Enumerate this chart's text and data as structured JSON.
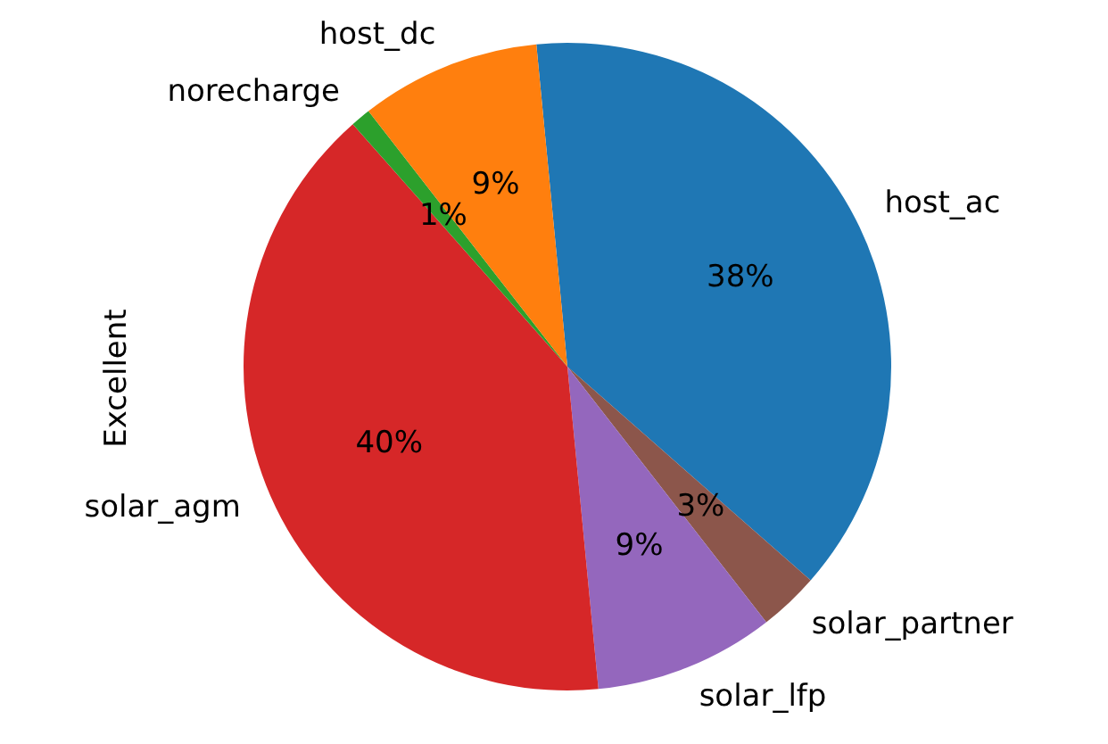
{
  "chart_data": {
    "type": "pie",
    "ylabel": "Excellent",
    "categories": [
      "host_ac",
      "solar_partner",
      "solar_lfp",
      "solar_agm",
      "norecharge",
      "host_dc"
    ],
    "values": [
      38,
      3,
      9,
      40,
      1,
      9
    ],
    "colors": [
      "#1f77b4",
      "#8c564b",
      "#9467bd",
      "#d62728",
      "#2ca02c",
      "#ff7f0e"
    ],
    "value_labels": [
      "38%",
      "3%",
      "9%",
      "40%",
      "1%",
      "9%"
    ],
    "legend": false
  }
}
